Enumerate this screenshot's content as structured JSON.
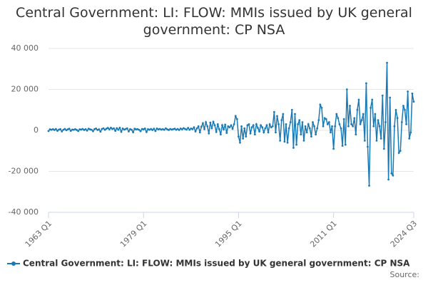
{
  "chart_data": {
    "type": "line",
    "title": "Central Government: LI: FLOW: MMIs issued by UK general government: CP NSA",
    "source": "Source:",
    "categories": [
      "1963 Q1",
      null,
      null,
      null,
      null,
      null,
      null,
      null,
      null,
      null,
      null,
      null,
      null,
      null,
      null,
      null,
      null,
      null,
      null,
      null,
      null,
      null,
      null,
      null,
      null,
      null,
      null,
      null,
      null,
      null,
      null,
      null,
      null,
      null,
      null,
      null,
      null,
      null,
      null,
      null,
      null,
      null,
      null,
      null,
      null,
      null,
      null,
      null,
      null,
      null,
      null,
      null,
      null,
      null,
      null,
      null,
      null,
      null,
      null,
      null,
      null,
      null,
      null,
      null,
      "1979 Q1",
      null,
      null,
      null,
      null,
      null,
      null,
      null,
      null,
      null,
      null,
      null,
      null,
      null,
      null,
      null,
      null,
      null,
      null,
      null,
      null,
      null,
      null,
      null,
      null,
      null,
      null,
      null,
      null,
      null,
      null,
      null,
      null,
      null,
      null,
      null,
      null,
      null,
      null,
      null,
      null,
      null,
      null,
      null,
      null,
      null,
      null,
      null,
      null,
      null,
      null,
      null,
      null,
      null,
      null,
      null,
      null,
      null,
      null,
      null,
      null,
      null,
      null,
      null,
      "1995 Q1",
      null,
      null,
      null,
      null,
      null,
      null,
      null,
      null,
      null,
      null,
      null,
      null,
      null,
      null,
      null,
      null,
      null,
      null,
      null,
      null,
      null,
      null,
      null,
      null,
      null,
      null,
      null,
      null,
      null,
      null,
      null,
      null,
      null,
      null,
      null,
      null,
      null,
      null,
      null,
      null,
      null,
      null,
      null,
      null,
      null,
      null,
      null,
      null,
      null,
      null,
      null,
      null,
      null,
      null,
      null,
      null,
      null,
      null,
      null,
      null,
      null,
      null,
      null,
      "2011 Q1",
      null,
      null,
      null,
      null,
      null,
      null,
      null,
      null,
      null,
      null,
      null,
      null,
      null,
      null,
      null,
      null,
      null,
      null,
      null,
      null,
      null,
      null,
      null,
      null,
      null,
      null,
      null,
      null,
      null,
      null,
      null,
      null,
      null,
      null,
      null,
      null,
      null,
      null,
      null,
      null,
      null,
      null,
      null,
      null,
      null,
      null,
      null,
      null,
      null,
      null,
      null,
      null,
      null,
      "2024 Q3"
    ],
    "series": [
      {
        "name": "Central Government: LI: FLOW: MMIs issued by UK general government: CP NSA",
        "color": "#1a7ab5",
        "values": [
          -300,
          500,
          300,
          600,
          200,
          700,
          -200,
          400,
          600,
          -500,
          300,
          700,
          100,
          500,
          800,
          -200,
          400,
          300,
          600,
          200,
          -300,
          500,
          400,
          700,
          200,
          600,
          -100,
          800,
          500,
          300,
          -400,
          600,
          900,
          200,
          500,
          -600,
          700,
          1000,
          300,
          800,
          1200,
          500,
          1300,
          700,
          1000,
          -200,
          1100,
          300,
          1300,
          -700,
          900,
          400,
          700,
          1000,
          -500,
          600,
          300,
          -900,
          800,
          500,
          600,
          300,
          -400,
          700,
          500,
          900,
          -800,
          600,
          300,
          700,
          200,
          800,
          -300,
          900,
          500,
          700,
          400,
          600,
          300,
          1000,
          500,
          200,
          700,
          400,
          600,
          800,
          300,
          700,
          200,
          900,
          500,
          1100,
          700,
          400,
          1200,
          300,
          900,
          600,
          1500,
          -500,
          1000,
          2000,
          -1000,
          1800,
          3500,
          600,
          4000,
          2000,
          -1500,
          3800,
          1000,
          4200,
          2500,
          -800,
          3000,
          600,
          -2000,
          2500,
          500,
          2800,
          -1200,
          2000,
          1500,
          2500,
          800,
          3000,
          7000,
          5500,
          -3000,
          -6000,
          2000,
          -4000,
          1000,
          -3000,
          2500,
          3000,
          -1500,
          1500,
          2500,
          -2000,
          3000,
          1200,
          -500,
          2500,
          1500,
          -1000,
          1000,
          2500,
          -1000,
          3000,
          1500,
          2000,
          9000,
          -1000,
          7000,
          3000,
          -5000,
          5000,
          8000,
          -5500,
          3000,
          -6000,
          1000,
          4000,
          10000,
          -8500,
          8000,
          -7000,
          3000,
          5000,
          -2000,
          4000,
          -5000,
          2000,
          -1000,
          3000,
          1000,
          -3000,
          4000,
          2000,
          -2000,
          1000,
          5000,
          12500,
          11000,
          2000,
          6000,
          5500,
          3000,
          4000,
          -1000,
          2000,
          -9000,
          2000,
          8000,
          6000,
          3000,
          1000,
          -7500,
          5500,
          -7000,
          20000,
          2000,
          12000,
          3000,
          2000,
          6000,
          -2000,
          10000,
          15000,
          3000,
          5000,
          8000,
          -5000,
          23000,
          -8000,
          -27000,
          11000,
          15000,
          2000,
          8000,
          -5000,
          5000,
          2000,
          -4000,
          17000,
          -9000,
          4000,
          33000,
          -24000,
          16000,
          -21000,
          -22000,
          2000,
          10000,
          6000,
          -11000,
          -10000,
          4000,
          12000,
          10000,
          3000,
          19000,
          -4000,
          -1000,
          18000,
          14000
        ]
      }
    ],
    "ylim": [
      -40000,
      40000
    ],
    "yticks": [
      {
        "value": -40000,
        "label": "-40 000"
      },
      {
        "value": -20000,
        "label": "-20 000"
      },
      0,
      {
        "value": 20000,
        "label": "20 000"
      },
      {
        "value": 40000,
        "label": "40 000"
      }
    ],
    "grid": true
  }
}
